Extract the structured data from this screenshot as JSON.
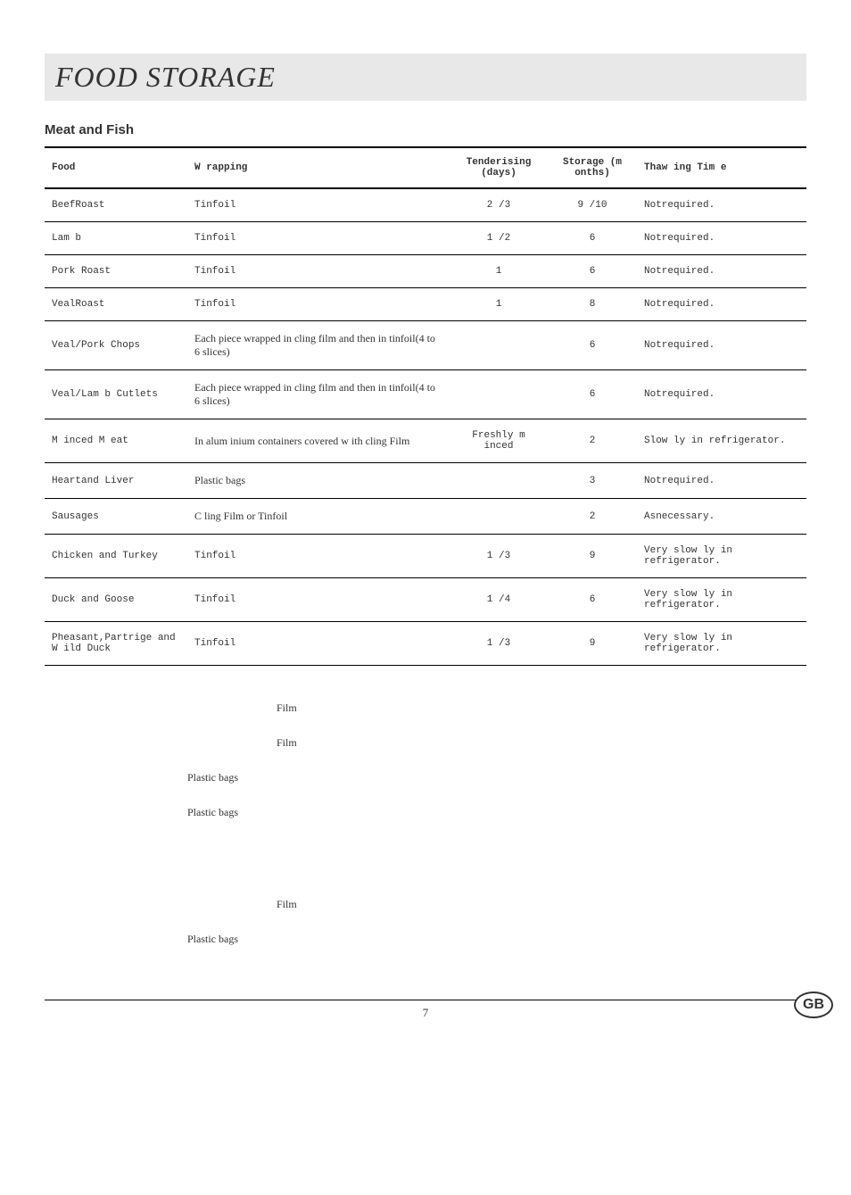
{
  "title": "FOOD STORAGE",
  "subtitle": "Meat and Fish",
  "headers": {
    "food": "Food",
    "wrapping": "W rapping",
    "tenderising": "Tenderising (days)",
    "storage": "Storage (m onths)",
    "thawing": "Thaw ing Tim e"
  },
  "rows": [
    {
      "food": "BeefRoast",
      "wrapping": "Tinfoil",
      "wrap_serif": false,
      "tend": "2 /3",
      "stor": "9 /10",
      "thaw": "Notrequired."
    },
    {
      "food": "Lam b",
      "wrapping": "Tinfoil",
      "wrap_serif": false,
      "tend": "1 /2",
      "stor": "6",
      "thaw": "Notrequired."
    },
    {
      "food": "Pork Roast",
      "wrapping": "Tinfoil",
      "wrap_serif": false,
      "tend": "1",
      "stor": "6",
      "thaw": "Notrequired."
    },
    {
      "food": "VealRoast",
      "wrapping": "Tinfoil",
      "wrap_serif": false,
      "tend": "1",
      "stor": "8",
      "thaw": "Notrequired."
    },
    {
      "food": "Veal/Pork Chops",
      "wrapping": "Each piece wrapped in cling film and then in tinfoil(4 to 6 slices)",
      "wrap_serif": true,
      "tend": "",
      "stor": "6",
      "thaw": "Notrequired."
    },
    {
      "food": "Veal/Lam b Cutlets",
      "wrapping": "Each piece wrapped in cling film and then in tinfoil(4 to 6 slices)",
      "wrap_serif": true,
      "tend": "",
      "stor": "6",
      "thaw": "Notrequired."
    },
    {
      "food": "M inced M eat",
      "wrapping": "In alum inium containers covered w ith cling Film",
      "wrap_serif": true,
      "tend": "Freshly m inced",
      "stor": "2",
      "thaw": "Slow ly in refrigerator."
    },
    {
      "food": "Heartand Liver",
      "wrapping": "Plastic bags",
      "wrap_serif": true,
      "tend": "",
      "stor": "3",
      "thaw": "Notrequired."
    },
    {
      "food": "Sausages",
      "wrapping": "C ling Film or Tinfoil",
      "wrap_serif": true,
      "tend": "",
      "stor": "2",
      "thaw": "Asnecessary."
    },
    {
      "food": "Chicken and Turkey",
      "wrapping": "Tinfoil",
      "wrap_serif": false,
      "tend": "1 /3",
      "stor": "9",
      "thaw": "Very slow ly in refrigerator."
    },
    {
      "food": "Duck and Goose",
      "wrapping": "Tinfoil",
      "wrap_serif": false,
      "tend": "1 /4",
      "stor": "6",
      "thaw": "Very slow ly in refrigerator."
    },
    {
      "food": "Pheasant,Partrige and W ild Duck",
      "wrapping": "Tinfoil",
      "wrap_serif": false,
      "tend": "1 /3",
      "stor": "9",
      "thaw": "Very slow ly in refrigerator."
    }
  ],
  "extras": [
    {
      "text": "Film",
      "cls": "film"
    },
    {
      "text": "Film",
      "cls": "film"
    },
    {
      "text": "Plastic bags",
      "cls": "bags"
    },
    {
      "text": "Plastic bags",
      "cls": "bags"
    },
    {
      "text": "",
      "cls": "extra-gap"
    },
    {
      "text": "Film",
      "cls": "film"
    },
    {
      "text": "Plastic bags",
      "cls": "bags"
    }
  ],
  "page_number": "7",
  "badge": "GB"
}
